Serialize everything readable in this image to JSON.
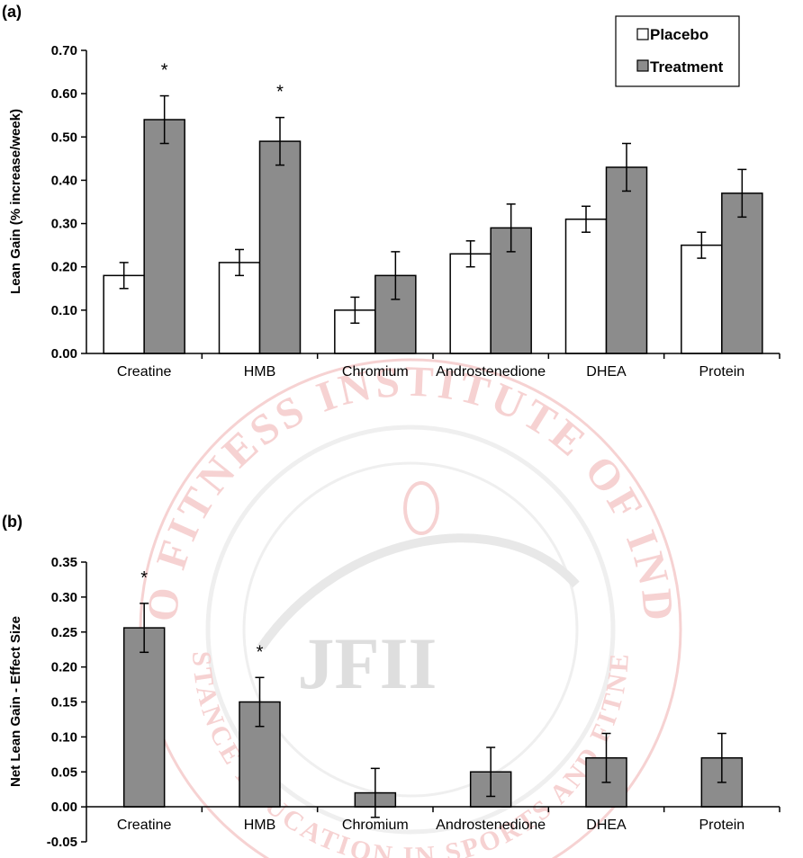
{
  "watermark": {
    "ring_text_top": "JLO FITNESS INSTITUTE OF INDIA",
    "ring_text_bottom": "DISTANCE EDUCATION IN SPORTS AND FITNESS",
    "monogram": "JFII",
    "color": "#e06060"
  },
  "chart_data": [
    {
      "panel": "(a)",
      "type": "bar",
      "title": "",
      "ylabel": "Lean Gain (% increase/week)",
      "xlabel": "",
      "ylim": [
        0,
        0.7
      ],
      "yticks": [
        0.0,
        0.1,
        0.2,
        0.3,
        0.4,
        0.5,
        0.6,
        0.7
      ],
      "ytick_labels": [
        "0.00",
        "0.10",
        "0.20",
        "0.30",
        "0.40",
        "0.50",
        "0.60",
        "0.70"
      ],
      "categories": [
        "Creatine",
        "HMB",
        "Chromium",
        "Androstenedione",
        "DHEA",
        "Protein"
      ],
      "series": [
        {
          "name": "Placebo",
          "color": "#ffffff",
          "values": [
            0.18,
            0.21,
            0.1,
            0.23,
            0.31,
            0.25
          ],
          "errors": [
            0.03,
            0.03,
            0.03,
            0.03,
            0.03,
            0.03
          ]
        },
        {
          "name": "Treatment",
          "color": "#8c8c8c",
          "values": [
            0.54,
            0.49,
            0.18,
            0.29,
            0.43,
            0.37
          ],
          "errors": [
            0.055,
            0.055,
            0.055,
            0.055,
            0.055,
            0.055
          ]
        }
      ],
      "significant": [
        true,
        true,
        false,
        false,
        false,
        false
      ],
      "significance_marker": "*",
      "legend_position": "top-right",
      "grid": false
    },
    {
      "panel": "(b)",
      "type": "bar",
      "title": "",
      "ylabel": "Net Lean Gain - Effect Size",
      "xlabel": "",
      "ylim": [
        -0.05,
        0.35
      ],
      "yticks": [
        -0.05,
        0.0,
        0.05,
        0.1,
        0.15,
        0.2,
        0.25,
        0.3,
        0.35
      ],
      "ytick_labels": [
        "-0.05",
        "0.00",
        "0.05",
        "0.10",
        "0.15",
        "0.20",
        "0.25",
        "0.30",
        "0.35"
      ],
      "categories": [
        "Creatine",
        "HMB",
        "Chromium",
        "Androstenedione",
        "DHEA",
        "Protein"
      ],
      "series": [
        {
          "color": "#8c8c8c",
          "values": [
            0.256,
            0.15,
            0.02,
            0.05,
            0.07,
            0.07
          ],
          "errors": [
            0.035,
            0.035,
            0.035,
            0.035,
            0.035,
            0.035
          ]
        }
      ],
      "significant": [
        true,
        true,
        false,
        false,
        false,
        false
      ],
      "significance_marker": "*",
      "grid": false
    }
  ]
}
